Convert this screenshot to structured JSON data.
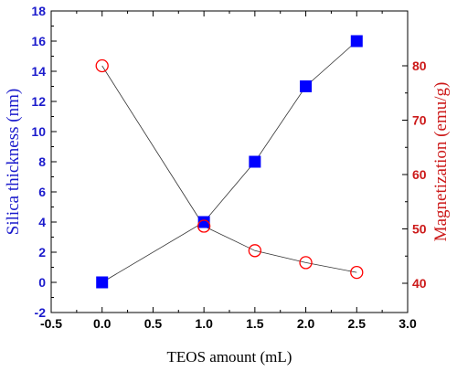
{
  "chart_data": {
    "type": "line",
    "xlabel": "TEOS amount (mL)",
    "xlim": [
      -0.5,
      3.0
    ],
    "xticks": [
      "-0.5",
      "0.0",
      "0.5",
      "1.0",
      "1.5",
      "2.0",
      "2.5",
      "3.0"
    ],
    "y_left": {
      "label": "Silica thickness (nm)",
      "lim": [
        -2,
        18
      ],
      "ticks": [
        "-2",
        "0",
        "2",
        "4",
        "6",
        "8",
        "10",
        "12",
        "14",
        "16",
        "18"
      ]
    },
    "y_right": {
      "label": "Magnetization (emu/g)",
      "ticks": [
        "40",
        "50",
        "60",
        "70",
        "80"
      ]
    },
    "series": [
      {
        "axis": "left",
        "marker": "filled-square",
        "color": "#0000ff",
        "x": [
          0.0,
          1.0,
          1.5,
          2.0,
          2.5
        ],
        "values": [
          0,
          4,
          8,
          13,
          16
        ]
      },
      {
        "axis": "right",
        "marker": "open-circle",
        "color": "#ff0000",
        "x": [
          0.0,
          1.0,
          1.5,
          2.0,
          2.5
        ],
        "values": [
          80,
          50.5,
          46,
          43.8,
          42
        ]
      }
    ],
    "grid": false,
    "legend": "none"
  }
}
